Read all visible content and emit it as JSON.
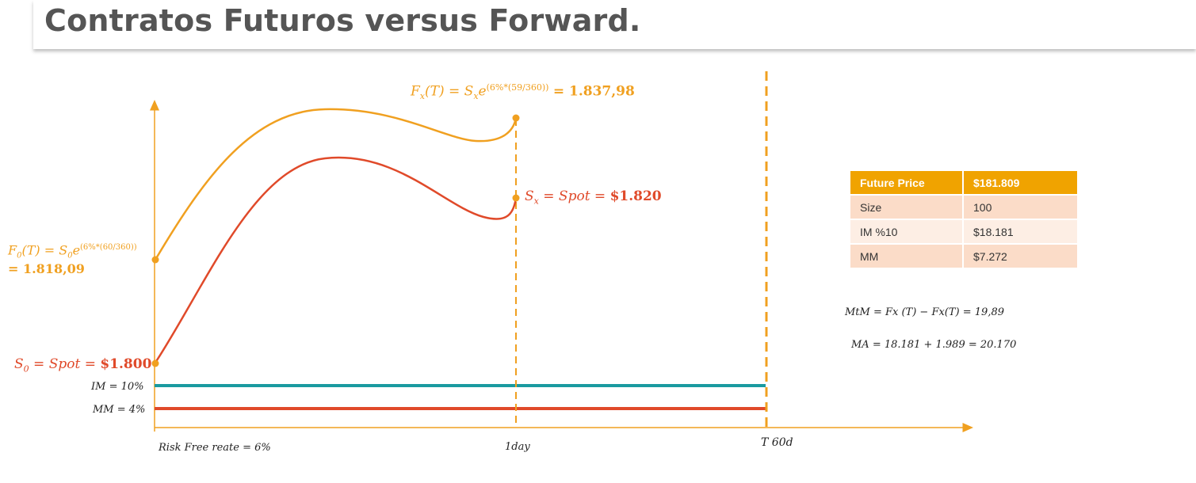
{
  "title": "Contratos Futuros versus Forward.",
  "labels": {
    "fx_formula": "Fx(T) = Sxe(6%*(59/360)) = 1.837,98",
    "fx_formula_lhs": "F",
    "fx_formula_sub": "x",
    "fx_formula_mid": "(T)  =  S",
    "fx_formula_sub2": "x",
    "fx_formula_e": "e",
    "fx_formula_exp": "(6%*(59/360))",
    "fx_formula_value": "= 1.837,98",
    "f0_line1": "F0(T) = S0e(6%*(60/360))",
    "f0_line1_lhs": "F",
    "f0_line1_sub": "0",
    "f0_line1_mid": "(T)  =  S",
    "f0_line1_sub2": "0",
    "f0_line1_e": "e",
    "f0_line1_exp": "(6%*(60/360))",
    "f0_line2": "= 1.818,09",
    "sx_label": "Sx = Spot = $1.820",
    "sx_label_s": "S",
    "sx_label_sub": "x",
    "sx_label_rest": " = Spot = ",
    "sx_label_value": "$1.820",
    "s0_label": "S0 = Spot = $1.800",
    "s0_label_s": "S",
    "s0_label_sub": "0",
    "s0_label_rest": " = Spot = ",
    "s0_label_value": "$1.800",
    "im": "IM = 10%",
    "mm": "MM = 4%",
    "risk_free": "Risk Free reate = 6%",
    "one_day": "1day",
    "t60": "T 60d",
    "mtm": "MtM = Fx (T) − Fx(T) = 19,89",
    "ma": "MA = 18.181 + 1.989 = 20.170"
  },
  "table": {
    "header": [
      "Future Price",
      "$181.809"
    ],
    "rows": [
      [
        "Size",
        "100"
      ],
      [
        "IM %10",
        "$18.181"
      ],
      [
        "MM",
        "$7.272"
      ]
    ]
  },
  "colors": {
    "orange": "#f0a020",
    "red": "#e04a2a",
    "teal": "#1a9aa0",
    "table_header": "#f0a300",
    "table_row": "#fbdcc8"
  }
}
